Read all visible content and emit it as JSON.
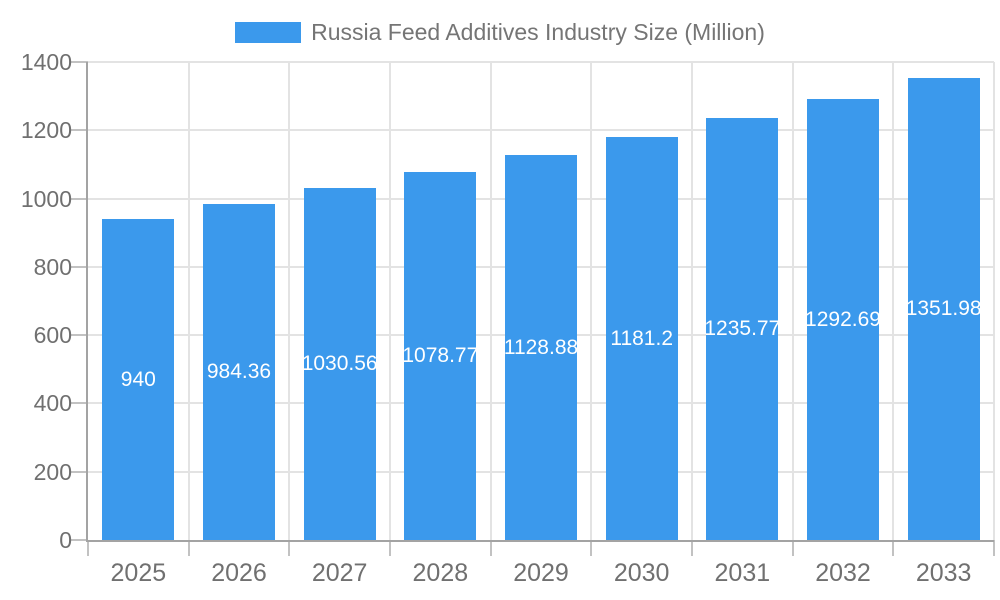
{
  "legend": {
    "label": "Russia Feed Additives Industry Size (Million)"
  },
  "colors": {
    "bar": "#3B99EC",
    "legend_swatch": "#3B99EC",
    "title_text": "#757575",
    "tick_text": "#707070",
    "axis_line": "#A3A3A3",
    "tick_mark": "#C2C2C2",
    "gridline": "#E3E3E3",
    "bar_label": "#FFFFFF",
    "background": "#FFFFFF"
  },
  "chart_data": {
    "type": "bar",
    "title": "Russia Feed Additives Industry Size (Million)",
    "categories": [
      "2025",
      "2026",
      "2027",
      "2028",
      "2029",
      "2030",
      "2031",
      "2032",
      "2033"
    ],
    "values": [
      940,
      984.36,
      1030.56,
      1078.77,
      1128.88,
      1181.2,
      1235.77,
      1292.69,
      1351.98
    ],
    "value_labels": [
      "940",
      "984.36",
      "1030.56",
      "1078.77",
      "1128.88",
      "1181.2",
      "1235.77",
      "1292.69",
      "1351.98"
    ],
    "xlabel": "",
    "ylabel": "",
    "ylim": [
      0,
      1400
    ],
    "yticks": [
      0,
      200,
      400,
      600,
      800,
      1000,
      1200,
      1400
    ],
    "grid": true,
    "legend_position": "top",
    "bar_label_position": "center-inside",
    "bar_label_clipped_to_bar": true
  }
}
